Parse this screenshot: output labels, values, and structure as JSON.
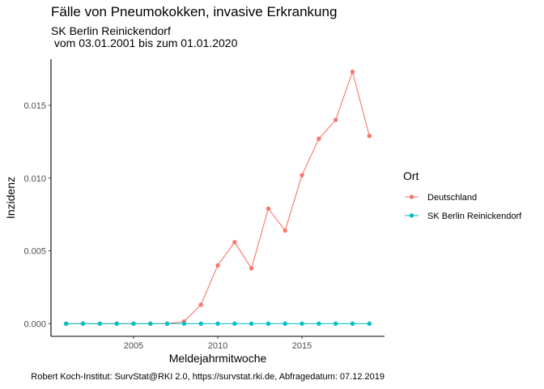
{
  "title": "Fälle von Pneumokokken, invasive Erkrankung",
  "subtitle_line1": "SK Berlin Reinickendorf",
  "subtitle_line2": " vom 03.01.2001 bis zum 01.01.2020",
  "caption": "Robert Koch-Institut: SurvStat@RKI 2.0, https://survstat.rki.de, Abfragedatum: 07.12.2019",
  "chart_data": {
    "type": "line",
    "title": "Fälle von Pneumokokken, invasive Erkrankung",
    "xlabel": "Meldejahrmitwoche",
    "ylabel": "Inzidenz",
    "xlim": [
      2000.1,
      2019.9
    ],
    "ylim": [
      -0.00087,
      0.01817
    ],
    "x_ticks": [
      2005,
      2010,
      2015
    ],
    "y_ticks": [
      0.0,
      0.005,
      0.01,
      0.015
    ],
    "y_tick_labels": [
      "0.000",
      "0.005",
      "0.010",
      "0.015"
    ],
    "x": [
      2001,
      2002,
      2003,
      2004,
      2005,
      2006,
      2007,
      2008,
      2009,
      2010,
      2011,
      2012,
      2013,
      2014,
      2015,
      2016,
      2017,
      2018,
      2019
    ],
    "series": [
      {
        "name": "Deutschland",
        "color": "#F8766D",
        "values": [
          0.0,
          0.0,
          0.0,
          0.0,
          0.0,
          0.0,
          0.0,
          0.00015,
          0.0013,
          0.004,
          0.0056,
          0.0038,
          0.0079,
          0.0064,
          0.0102,
          0.0127,
          0.014,
          0.0173,
          0.0129
        ]
      },
      {
        "name": "SK Berlin Reinickendorf",
        "color": "#00BFC4",
        "values": [
          0.0,
          0.0,
          0.0,
          0.0,
          0.0,
          0.0,
          0.0,
          0.0,
          0.0,
          0.0,
          0.0,
          0.0,
          0.0,
          0.0,
          0.0,
          0.0,
          0.0,
          0.0,
          0.0
        ]
      }
    ],
    "legend_title": "Ort",
    "legend_position": "right",
    "grid": false
  }
}
